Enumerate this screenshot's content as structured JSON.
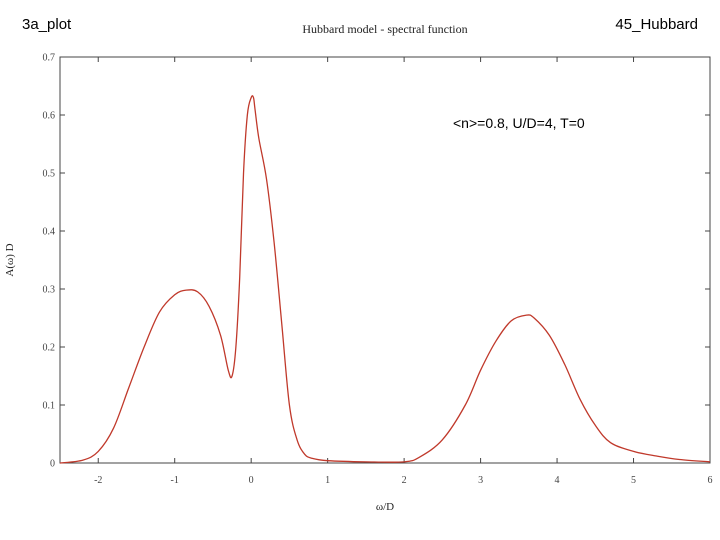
{
  "corner_left": "3a_plot",
  "corner_right": "45_Hubbard",
  "chart_data": {
    "type": "line",
    "title": "Hubbard model - spectral function",
    "xlabel": "ω/D",
    "ylabel": "A(ω) D",
    "xlim": [
      -2.5,
      6
    ],
    "ylim": [
      0,
      0.7
    ],
    "xticks": [
      "-2",
      "-1",
      "0",
      "1",
      "2",
      "3",
      "4",
      "5",
      "6"
    ],
    "yticks": [
      "0",
      "0.1",
      "0.2",
      "0.3",
      "0.4",
      "0.5",
      "0.6",
      "0.7"
    ],
    "annotation": "<n>=0.8, U/D=4, T=0",
    "grid": false,
    "line_color": "#c0392b",
    "series": [
      {
        "x": [
          -2.5,
          -2.2,
          -2.0,
          -1.8,
          -1.6,
          -1.4,
          -1.2,
          -1.0,
          -0.85,
          -0.7,
          -0.55,
          -0.4,
          -0.3,
          -0.25,
          -0.2,
          -0.15,
          -0.1,
          -0.05,
          0.0,
          0.03,
          0.05,
          0.1,
          0.2,
          0.3,
          0.4,
          0.5,
          0.6,
          0.7,
          0.8,
          1.0,
          1.5,
          2.0,
          2.2,
          2.5,
          2.8,
          3.0,
          3.2,
          3.4,
          3.6,
          3.7,
          3.9,
          4.1,
          4.3,
          4.5,
          4.7,
          5.0,
          5.3,
          5.6,
          6.0
        ],
        "y": [
          0.0,
          0.005,
          0.02,
          0.06,
          0.13,
          0.2,
          0.26,
          0.29,
          0.298,
          0.295,
          0.27,
          0.22,
          0.16,
          0.15,
          0.2,
          0.32,
          0.5,
          0.6,
          0.63,
          0.63,
          0.61,
          0.56,
          0.49,
          0.38,
          0.24,
          0.1,
          0.04,
          0.015,
          0.008,
          0.004,
          0.002,
          0.002,
          0.01,
          0.04,
          0.1,
          0.16,
          0.21,
          0.245,
          0.255,
          0.25,
          0.22,
          0.17,
          0.11,
          0.065,
          0.035,
          0.02,
          0.012,
          0.006,
          0.002
        ]
      }
    ]
  }
}
